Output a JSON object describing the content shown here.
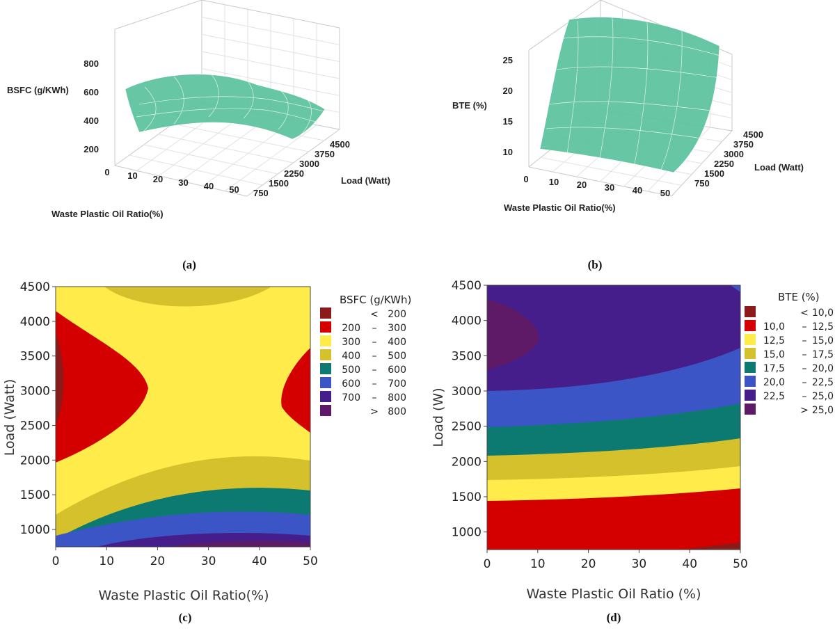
{
  "chart_data": [
    {
      "panel": "a",
      "type": "surface",
      "caption": "(a)",
      "zlabel": "BSFC (g/KWh)",
      "xlabel": "Waste Plastic Oil Ratio(%)",
      "ylabel": "Load (Watt)",
      "z_ticks": [
        "800",
        "600",
        "400",
        "200"
      ],
      "x_ticks": [
        "0",
        "10",
        "20",
        "30",
        "40",
        "50"
      ],
      "y_ticks": [
        "750",
        "1500",
        "2250",
        "3000",
        "3750",
        "4500"
      ],
      "xlim": [
        0,
        50
      ],
      "ylim": [
        750,
        4500
      ],
      "zlim": [
        0,
        900
      ]
    },
    {
      "panel": "b",
      "type": "surface",
      "caption": "(b)",
      "zlabel": "BTE (%)",
      "xlabel": "Waste Plastic Oil Ratio(%)",
      "ylabel": "Load (Watt)",
      "z_ticks": [
        "25",
        "20",
        "15",
        "10"
      ],
      "x_ticks": [
        "0",
        "10",
        "20",
        "30",
        "40",
        "50"
      ],
      "y_ticks": [
        "750",
        "1500",
        "2250",
        "3000",
        "3750",
        "4500"
      ],
      "xlim": [
        0,
        50
      ],
      "ylim": [
        750,
        4500
      ],
      "zlim": [
        8,
        28
      ]
    },
    {
      "panel": "c",
      "type": "contour",
      "caption": "(c)",
      "legend_title": "BSFC (g/KWh)",
      "xlabel": "Waste Plastic Oil Ratio(%)",
      "ylabel": "Load (Watt)",
      "x_ticks": [
        "0",
        "10",
        "20",
        "30",
        "40",
        "50"
      ],
      "y_ticks": [
        "1000",
        "1500",
        "2000",
        "2500",
        "3000",
        "3500",
        "4000",
        "4500"
      ],
      "xlim": [
        0,
        50
      ],
      "ylim": [
        750,
        4500
      ],
      "levels": [
        {
          "lo": "",
          "sep": "<",
          "hi": "200",
          "color": "#8b1a1a"
        },
        {
          "lo": "200",
          "sep": "–",
          "hi": "300",
          "color": "#d40000"
        },
        {
          "lo": "300",
          "sep": "–",
          "hi": "400",
          "color": "#ffec4a"
        },
        {
          "lo": "400",
          "sep": "–",
          "hi": "500",
          "color": "#d5c12b"
        },
        {
          "lo": "500",
          "sep": "–",
          "hi": "600",
          "color": "#0d7a72"
        },
        {
          "lo": "600",
          "sep": "–",
          "hi": "700",
          "color": "#3b55c6"
        },
        {
          "lo": "700",
          "sep": "–",
          "hi": "800",
          "color": "#461e8c"
        },
        {
          "lo": "",
          "sep": ">",
          "hi": "800",
          "color": "#5e1a66"
        }
      ]
    },
    {
      "panel": "d",
      "type": "contour",
      "caption": "(d)",
      "legend_title": "BTE (%)",
      "xlabel": "Waste Plastic Oil Ratio (%)",
      "ylabel": "Load (W)",
      "x_ticks": [
        "0",
        "10",
        "20",
        "30",
        "40",
        "50"
      ],
      "y_ticks": [
        "1000",
        "1500",
        "2000",
        "2500",
        "3000",
        "3500",
        "4000",
        "4500"
      ],
      "xlim": [
        0,
        50
      ],
      "ylim": [
        750,
        4500
      ],
      "levels": [
        {
          "lo": "",
          "sep": "<",
          "hi": "10,0",
          "color": "#8b1a1a"
        },
        {
          "lo": "10,0",
          "sep": "–",
          "hi": "12,5",
          "color": "#d40000"
        },
        {
          "lo": "12,5",
          "sep": "–",
          "hi": "15,0",
          "color": "#ffec4a"
        },
        {
          "lo": "15,0",
          "sep": "–",
          "hi": "17,5",
          "color": "#d5c12b"
        },
        {
          "lo": "17,5",
          "sep": "–",
          "hi": "20,0",
          "color": "#0d7a72"
        },
        {
          "lo": "20,0",
          "sep": "–",
          "hi": "22,5",
          "color": "#3b55c6"
        },
        {
          "lo": "22,5",
          "sep": "–",
          "hi": "25,0",
          "color": "#461e8c"
        },
        {
          "lo": "",
          "sep": ">",
          "hi": "25,0",
          "color": "#5e1a66"
        }
      ]
    }
  ]
}
